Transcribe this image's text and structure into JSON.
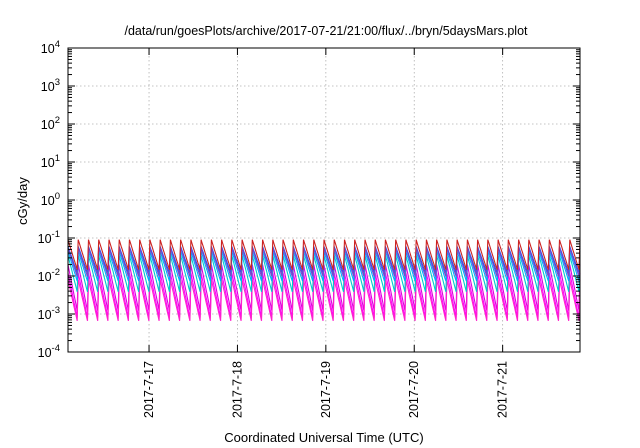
{
  "chart_data": {
    "type": "line",
    "title": "/data/run/goesPlots/archive/2017-07-21/21:00/flux/../bryn/5daysMars.plot",
    "xlabel": "Coordinated Universal Time (UTC)",
    "ylabel": "cGy/day",
    "y_scale": "log",
    "ylim": [
      0.0001,
      10000
    ],
    "xlim": [
      "2017-07-16 02:00",
      "2017-07-21 21:00"
    ],
    "x_ticks": [
      "2017-7-17",
      "2017-7-18",
      "2017-7-19",
      "2017-7-20",
      "2017-7-21"
    ],
    "y_ticks": [
      {
        "base": "10",
        "exp": "-4"
      },
      {
        "base": "10",
        "exp": "-3"
      },
      {
        "base": "10",
        "exp": "-2"
      },
      {
        "base": "10",
        "exp": "-1"
      },
      {
        "base": "10",
        "exp": "0"
      },
      {
        "base": "10",
        "exp": "1"
      },
      {
        "base": "10",
        "exp": "2"
      },
      {
        "base": "10",
        "exp": "3"
      },
      {
        "base": "10",
        "exp": "4"
      }
    ],
    "grid": true,
    "sawtooth_period_hours": 2.78,
    "series": [
      {
        "color": "#ff00ff",
        "peak": 0.012,
        "trough": 0.0006
      },
      {
        "color": "#dd00dd",
        "peak": 0.02,
        "trough": 0.0009
      },
      {
        "color": "#ff22cc",
        "peak": 0.008,
        "trough": 0.0005
      },
      {
        "color": "#00cccc",
        "peak": 0.035,
        "trough": 0.003
      },
      {
        "color": "#00aaff",
        "peak": 0.045,
        "trough": 0.006
      },
      {
        "color": "#2255ee",
        "peak": 0.06,
        "trough": 0.01
      },
      {
        "color": "#7744cc",
        "peak": 0.055,
        "trough": 0.008
      },
      {
        "color": "#cc2222",
        "peak": 0.09,
        "trough": 0.012
      }
    ]
  }
}
